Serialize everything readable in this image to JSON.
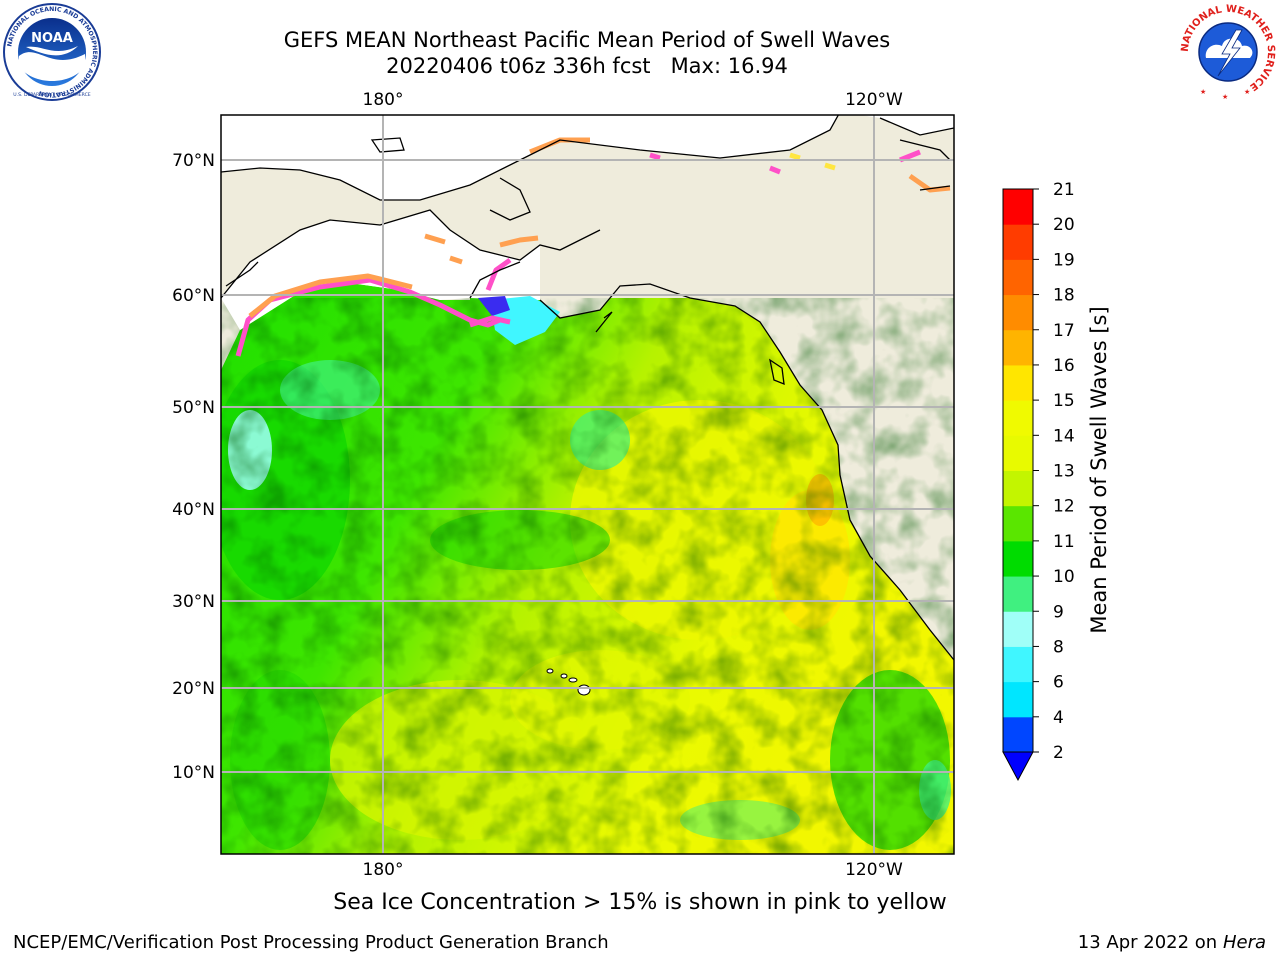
{
  "header": {
    "title_line1": "GEFS MEAN Northeast Pacific Mean Period of Swell Waves",
    "title_line2": "20220406 t06z 336h fcst   Max: 16.94"
  },
  "logos": {
    "left": {
      "name": "NOAA",
      "ring_text": "NATIONAL OCEANIC AND ATMOSPHERIC ADMINISTRATION",
      "bottom_text": "U.S. DEPARTMENT OF COMMERCE"
    },
    "right": {
      "ring_text": "NATIONAL WEATHER SERVICE"
    }
  },
  "chart_data": {
    "type": "heatmap",
    "title": "GEFS MEAN Northeast Pacific Mean Period of Swell Waves",
    "subtitle": "20220406 t06z 336h fcst   Max: 16.94",
    "max_value": 16.94,
    "x_ticks_top": [
      "180°",
      "120°W"
    ],
    "x_ticks_bottom": [
      "180°",
      "120°W"
    ],
    "y_ticks": [
      "70°N",
      "60°N",
      "50°N",
      "40°N",
      "30°N",
      "20°N",
      "10°N"
    ],
    "lon_grid": [
      180,
      -120
    ],
    "lat_grid": [
      70,
      60,
      50,
      40,
      30,
      20,
      10
    ],
    "colorbar": {
      "label": "Mean Period of Swell Waves [s]",
      "ticks": [
        "2",
        "4",
        "6",
        "8",
        "9",
        "10",
        "11",
        "12",
        "13",
        "14",
        "15",
        "16",
        "17",
        "18",
        "19",
        "20",
        "21"
      ],
      "colors": [
        "#0046ff",
        "#00e6ff",
        "#40f6ff",
        "#a0fff8",
        "#40f080",
        "#00dc00",
        "#5ae600",
        "#c3f500",
        "#e8fa00",
        "#f0fa00",
        "#ffe600",
        "#ffb400",
        "#ff8c00",
        "#ff6400",
        "#ff3c00",
        "#ff0000"
      ],
      "extend_color": "#0000ff",
      "extend": "min"
    },
    "land_color": "#efecdc",
    "grid": true,
    "sea_ice_colors": [
      "#ff50c8",
      "#ffa050",
      "#ffe640"
    ]
  },
  "caption": "Sea Ice Concentration > 15% is shown in pink to yellow",
  "footer": {
    "left": "NCEP/EMC/Verification Post Processing Product Generation Branch",
    "right_prefix": "13 Apr 2022 on ",
    "right_host": "Hera"
  }
}
